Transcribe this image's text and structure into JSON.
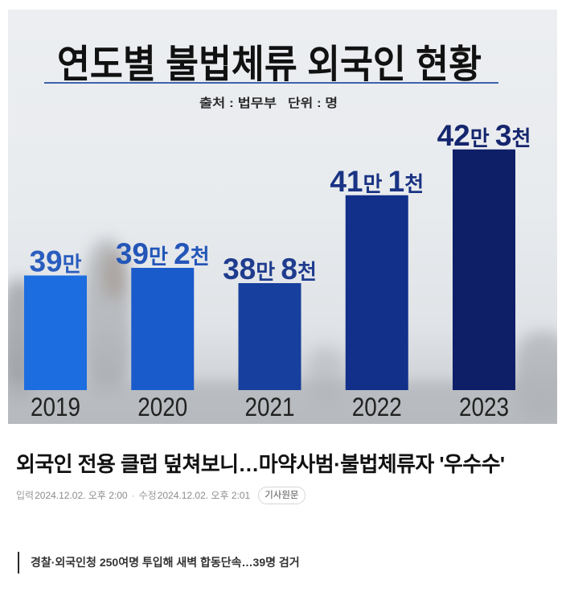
{
  "chart_data": {
    "type": "bar",
    "title": "연도별 불법체류 외국인 현황",
    "source": "출처 : 법무부",
    "unit": "단위 : 명",
    "categories": [
      "2019",
      "2020",
      "2021",
      "2022",
      "2023"
    ],
    "values": [
      390000,
      392000,
      388000,
      411000,
      423000
    ],
    "labels": [
      "39만",
      "39만 2천",
      "38만 8천",
      "41만 1천",
      "42만 3천"
    ],
    "ylim": [
      360000,
      440000
    ],
    "grid": false,
    "colors": [
      "#1c6ddf",
      "#1a5bcc",
      "#173f9d",
      "#12308a",
      "#0e1f68"
    ],
    "label_colors": [
      "#2a5dbe",
      "#2456b8",
      "#1f3c8e",
      "#1a3384",
      "#15266e"
    ]
  },
  "article": {
    "headline": "외국인 전용 클럽 덮쳐보니…마약사범·불법체류자 '우수수'",
    "meta": {
      "published_label": "입력",
      "published_time": "2024.12.02. 오후 2:00",
      "separator": "·",
      "modified_label": "수정",
      "modified_time": "2024.12.02. 오후 2:01",
      "original_button": "기사원문"
    },
    "subtitle": "경찰·외국인청 250여명 투입해 새벽 합동단속…39명 검거"
  }
}
